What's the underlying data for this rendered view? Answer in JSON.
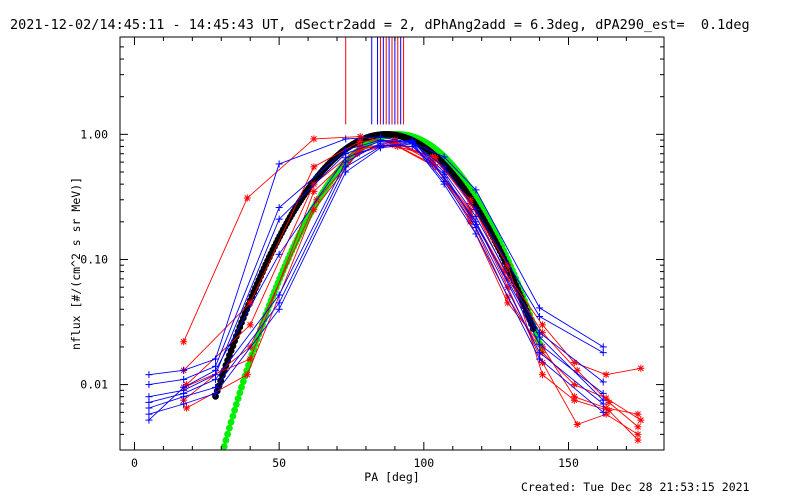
{
  "title": "2021-12-02/14:45:11 - 14:45:43 UT, dSectr2add = 2, dPhAng2add = 6.3deg, dPA290_est=  0.1deg",
  "created": "Created: Tue Dec 28 21:53:15 2021",
  "colors": {
    "red": "#ff0000",
    "blue": "#0000ff",
    "black": "#000000",
    "green": "#00ee00"
  },
  "chart_data": {
    "type": "line",
    "xlabel": "PA [deg]",
    "ylabel": "nflux [#/(cm^2 s sr MeV)]",
    "xlim": [
      -5,
      183
    ],
    "ylim": [
      0.003,
      6.0
    ],
    "yscale": "log",
    "x_ticks": [
      0,
      50,
      100,
      150
    ],
    "x_tick_labels": [
      "0",
      "50",
      "100",
      "150"
    ],
    "y_ticks": [
      0.01,
      0.1,
      1.0
    ],
    "y_tick_labels": [
      "0.01",
      "0.10",
      "1.00"
    ],
    "vertical_lines": [
      {
        "x": 73,
        "color": "red"
      },
      {
        "x": 82,
        "color": "blue"
      },
      {
        "x": 84,
        "color": "blue"
      },
      {
        "x": 85,
        "color": "red"
      },
      {
        "x": 86,
        "color": "blue"
      },
      {
        "x": 87,
        "color": "red"
      },
      {
        "x": 88,
        "color": "blue"
      },
      {
        "x": 89,
        "color": "red"
      },
      {
        "x": 90,
        "color": "blue"
      },
      {
        "x": 91,
        "color": "red"
      },
      {
        "x": 92,
        "color": "blue"
      },
      {
        "x": 93,
        "color": "red"
      }
    ],
    "series": [
      {
        "color": "red",
        "marker": "star",
        "x": [
          17,
          39,
          62,
          78,
          90,
          103,
          116,
          128,
          141,
          152,
          163,
          175
        ],
        "y": [
          0.022,
          0.31,
          0.92,
          0.96,
          0.85,
          0.66,
          0.3,
          0.08,
          0.03,
          0.015,
          0.012,
          0.0135
        ]
      },
      {
        "color": "red",
        "marker": "star",
        "x": [
          17,
          40,
          62,
          78,
          90,
          103,
          116,
          129,
          141,
          152,
          163,
          174
        ],
        "y": [
          0.013,
          0.045,
          0.55,
          0.88,
          0.9,
          0.62,
          0.2,
          0.045,
          0.02,
          0.008,
          0.0065,
          0.0058
        ]
      },
      {
        "color": "red",
        "marker": "star",
        "x": [
          18,
          40,
          62,
          78,
          90,
          104,
          116,
          129,
          141,
          153,
          163,
          174
        ],
        "y": [
          0.01,
          0.03,
          0.4,
          0.8,
          0.82,
          0.55,
          0.25,
          0.06,
          0.015,
          0.0048,
          0.0058,
          0.004
        ]
      },
      {
        "color": "red",
        "marker": "star",
        "x": [
          17,
          40,
          63,
          78,
          90,
          103,
          116,
          129,
          141,
          152,
          163,
          175
        ],
        "y": [
          0.0075,
          0.02,
          0.3,
          0.75,
          0.88,
          0.6,
          0.22,
          0.05,
          0.018,
          0.01,
          0.0078,
          0.0052
        ]
      },
      {
        "color": "red",
        "marker": "star",
        "x": [
          18,
          39,
          62,
          77,
          89,
          103,
          116,
          129,
          141,
          153,
          164,
          174
        ],
        "y": [
          0.0065,
          0.012,
          0.25,
          0.7,
          0.85,
          0.58,
          0.24,
          0.07,
          0.026,
          0.013,
          0.0072,
          0.0046
        ]
      },
      {
        "color": "red",
        "marker": "star",
        "x": [
          17,
          40,
          62,
          78,
          91,
          104,
          116,
          129,
          141,
          152,
          164,
          174
        ],
        "y": [
          0.0095,
          0.016,
          0.35,
          0.78,
          0.8,
          0.65,
          0.28,
          0.09,
          0.012,
          0.0075,
          0.0062,
          0.0036
        ]
      },
      {
        "color": "blue",
        "marker": "plus",
        "x": [
          5,
          17,
          28,
          50,
          73,
          85,
          96,
          107,
          118,
          140,
          162
        ],
        "y": [
          0.012,
          0.013,
          0.016,
          0.58,
          0.92,
          0.95,
          0.86,
          0.66,
          0.36,
          0.041,
          0.02
        ]
      },
      {
        "color": "blue",
        "marker": "plus",
        "x": [
          5,
          17,
          28,
          50,
          73,
          85,
          96,
          107,
          118,
          140,
          162
        ],
        "y": [
          0.01,
          0.011,
          0.014,
          0.26,
          0.75,
          0.9,
          0.85,
          0.55,
          0.25,
          0.035,
          0.018
        ]
      },
      {
        "color": "blue",
        "marker": "plus",
        "x": [
          5,
          17,
          28,
          50,
          73,
          85,
          96,
          107,
          118,
          140,
          162
        ],
        "y": [
          0.008,
          0.009,
          0.012,
          0.21,
          0.7,
          0.88,
          0.88,
          0.5,
          0.22,
          0.026,
          0.0105
        ]
      },
      {
        "color": "blue",
        "marker": "plus",
        "x": [
          5,
          17,
          28,
          50,
          73,
          85,
          96,
          107,
          118,
          140,
          162
        ],
        "y": [
          0.0072,
          0.0085,
          0.011,
          0.052,
          0.6,
          0.85,
          0.9,
          0.45,
          0.2,
          0.021,
          0.0085
        ]
      },
      {
        "color": "blue",
        "marker": "plus",
        "x": [
          5,
          17,
          28,
          50,
          73,
          85,
          96,
          107,
          118,
          140,
          162
        ],
        "y": [
          0.0065,
          0.008,
          0.0095,
          0.045,
          0.55,
          0.8,
          0.86,
          0.42,
          0.18,
          0.018,
          0.007
        ]
      },
      {
        "color": "blue",
        "marker": "plus",
        "x": [
          5,
          17,
          28,
          50,
          73,
          85,
          96,
          107,
          118,
          140,
          162
        ],
        "y": [
          0.0058,
          0.007,
          0.0085,
          0.04,
          0.5,
          0.78,
          0.84,
          0.4,
          0.16,
          0.016,
          0.006
        ]
      },
      {
        "color": "blue",
        "marker": "plus",
        "x": [
          5,
          17,
          28,
          50,
          73,
          85,
          96,
          107,
          118,
          140,
          162
        ],
        "y": [
          0.0052,
          0.0095,
          0.013,
          0.11,
          0.65,
          0.82,
          0.8,
          0.48,
          0.19,
          0.024,
          0.0075
        ]
      }
    ],
    "fits": [
      {
        "color": "black",
        "x0": 87,
        "width_deg": 19.0,
        "peak": 1.0,
        "x_range": [
          28,
          138
        ]
      },
      {
        "color": "green",
        "x0": 91,
        "width_deg": 17.7,
        "peak": 1.0,
        "x_range": [
          28,
          141
        ]
      }
    ]
  }
}
